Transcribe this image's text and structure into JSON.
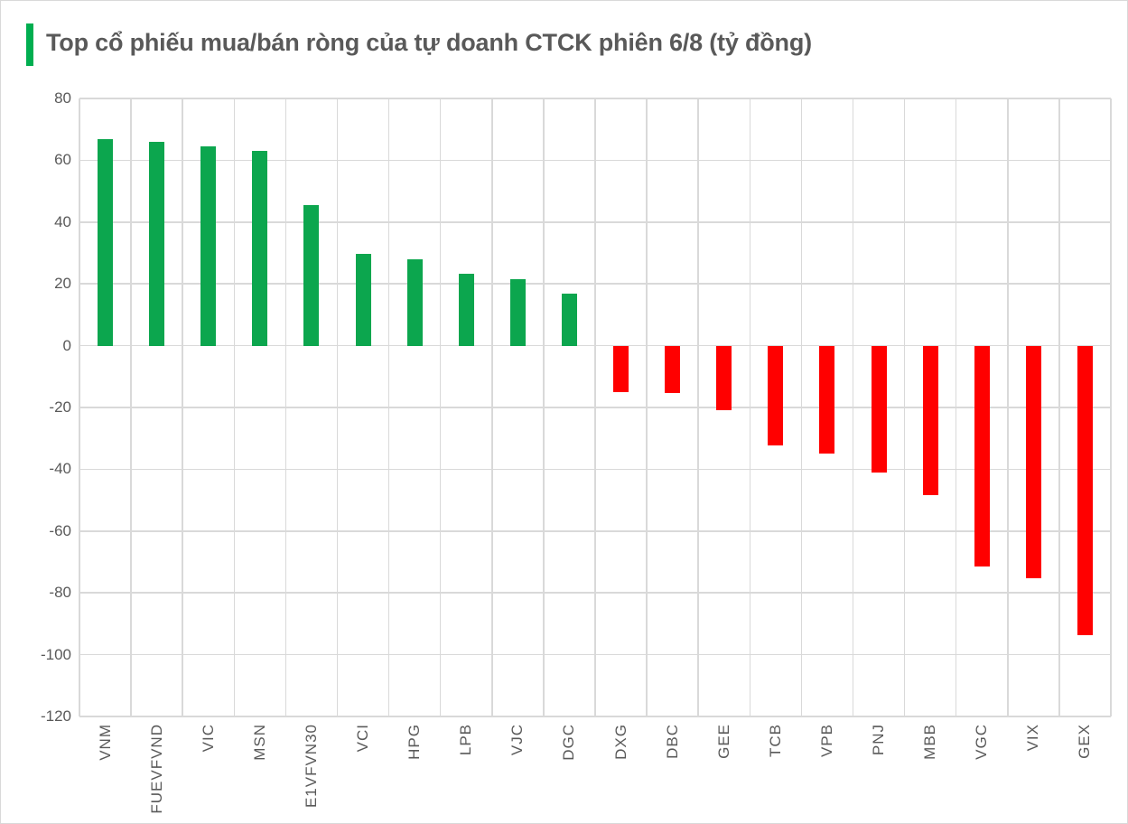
{
  "page": {
    "background": "#FFFFFF",
    "border_color": "#D9D9D9"
  },
  "title": {
    "text": "Top cổ phiếu mua/bán ròng của tự doanh CTCK phiên 6/8 (tỷ đồng)",
    "text_color": "#595959",
    "accent_color": "#00AE50"
  },
  "chart_data": {
    "type": "bar",
    "title": "Top cổ phiếu mua/bán ròng của tự doanh CTCK phiên 6/8 (tỷ đồng)",
    "unit": "tỷ đồng",
    "categories": [
      "VNM",
      "FUEVFVND",
      "VIC",
      "MSN",
      "E1VFVN30",
      "VCI",
      "HPG",
      "LPB",
      "VJC",
      "DGC",
      "DXG",
      "DBC",
      "GEE",
      "TCB",
      "VPB",
      "PNJ",
      "MBB",
      "VGC",
      "VIX",
      "GEX"
    ],
    "values": [
      66.8,
      66.1,
      64.4,
      63.0,
      45.6,
      29.8,
      27.9,
      23.3,
      21.4,
      16.8,
      -14.9,
      -15.4,
      -20.8,
      -32.4,
      -34.9,
      -41.2,
      -48.5,
      -71.6,
      -75.4,
      -93.8
    ],
    "positive_color": "#0CA64E",
    "negative_color": "#FF0000",
    "ylim": [
      -120,
      80
    ],
    "yticks": [
      80,
      60,
      40,
      20,
      0,
      -20,
      -40,
      -60,
      -80,
      -100,
      -120
    ],
    "grid": true,
    "gridline_color": "#D9D9D9",
    "axis_text_color": "#595959",
    "legend": "none",
    "xlabel": "",
    "ylabel": ""
  }
}
